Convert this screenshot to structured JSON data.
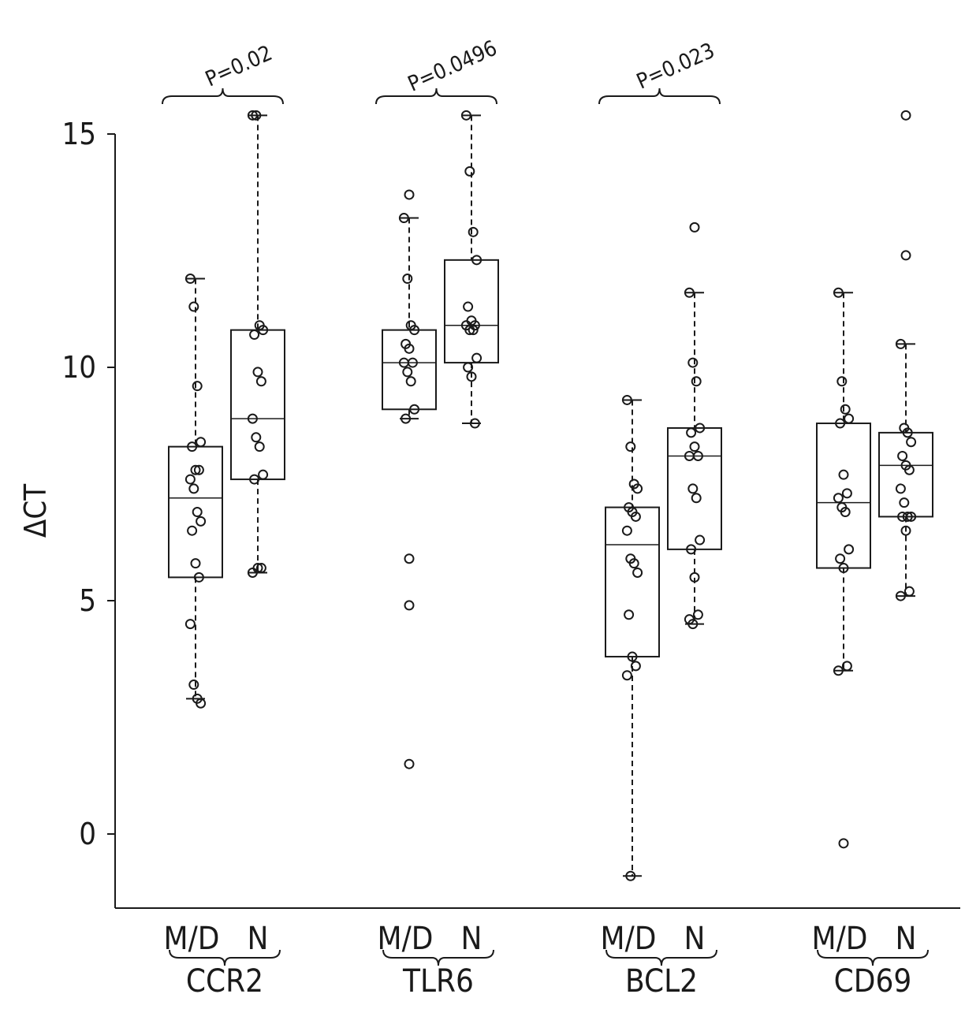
{
  "chart_data": {
    "type": "boxplot",
    "ylabel": "ΔCT",
    "ylim": [
      -1.6,
      15.6
    ],
    "yticks": [
      0,
      5,
      10,
      15
    ],
    "yticklabels": [
      "0",
      "5",
      "10",
      "15"
    ],
    "groups": [
      {
        "gene": "CCR2",
        "p_value": "P=0.02",
        "boxes": [
          {
            "label": "M/D",
            "whisker_low": 2.9,
            "q1": 5.5,
            "median": 7.2,
            "q3": 8.3,
            "whisker_high": 11.9,
            "outliers": [],
            "points": [
              11.9,
              11.3,
              9.6,
              8.4,
              8.3,
              7.8,
              7.8,
              7.6,
              7.4,
              6.9,
              6.7,
              6.5,
              5.8,
              5.5,
              4.5,
              3.2,
              2.9,
              2.8
            ]
          },
          {
            "label": "N",
            "whisker_low": 5.6,
            "q1": 7.6,
            "median": 8.9,
            "q3": 10.8,
            "whisker_high": 15.4,
            "outliers": [],
            "points": [
              15.4,
              15.4,
              10.9,
              10.8,
              10.7,
              9.9,
              9.7,
              8.9,
              8.5,
              8.3,
              7.7,
              7.6,
              5.7,
              5.7,
              5.6
            ]
          }
        ]
      },
      {
        "gene": "TLR6",
        "p_value": "P=0.0496",
        "boxes": [
          {
            "label": "M/D",
            "whisker_low": 8.9,
            "q1": 9.1,
            "median": 10.1,
            "q3": 10.8,
            "whisker_high": 13.2,
            "outliers": [
              13.7,
              5.9,
              4.9,
              1.5
            ],
            "points": [
              13.2,
              11.9,
              10.9,
              10.8,
              10.5,
              10.4,
              10.1,
              10.1,
              9.9,
              9.7,
              9.1,
              8.9
            ]
          },
          {
            "label": "N",
            "whisker_low": 8.8,
            "q1": 10.1,
            "median": 10.9,
            "q3": 12.3,
            "whisker_high": 15.4,
            "outliers": [],
            "points": [
              15.4,
              14.2,
              12.9,
              12.3,
              11.3,
              11.0,
              10.9,
              10.9,
              10.8,
              10.8,
              10.2,
              10.0,
              9.8,
              8.8
            ]
          }
        ]
      },
      {
        "gene": "BCL2",
        "p_value": "P=0.023",
        "boxes": [
          {
            "label": "M/D",
            "whisker_low": -0.9,
            "q1": 3.8,
            "median": 6.2,
            "q3": 7.0,
            "whisker_high": 9.3,
            "outliers": [],
            "points": [
              9.3,
              8.3,
              7.5,
              7.4,
              7.0,
              6.9,
              6.8,
              6.5,
              5.9,
              5.8,
              5.6,
              4.7,
              3.8,
              3.6,
              3.4,
              -0.9
            ]
          },
          {
            "label": "N",
            "whisker_low": 4.5,
            "q1": 6.1,
            "median": 8.1,
            "q3": 8.7,
            "whisker_high": 11.6,
            "outliers": [
              13.0
            ],
            "points": [
              11.6,
              10.1,
              9.7,
              8.7,
              8.6,
              8.3,
              8.1,
              8.1,
              7.4,
              7.2,
              6.3,
              6.1,
              5.5,
              4.7,
              4.6,
              4.5
            ]
          }
        ]
      },
      {
        "gene": "CD69",
        "p_value": "",
        "boxes": [
          {
            "label": "M/D",
            "whisker_low": 3.5,
            "q1": 5.7,
            "median": 7.1,
            "q3": 8.8,
            "whisker_high": 11.6,
            "outliers": [
              -0.2
            ],
            "points": [
              11.6,
              9.7,
              9.1,
              8.9,
              8.8,
              7.7,
              7.3,
              7.2,
              7.0,
              6.9,
              6.1,
              5.9,
              5.7,
              3.6,
              3.5
            ]
          },
          {
            "label": "N",
            "whisker_low": 5.1,
            "q1": 6.8,
            "median": 7.9,
            "q3": 8.6,
            "whisker_high": 10.5,
            "outliers": [
              15.4,
              12.4
            ],
            "points": [
              10.5,
              8.7,
              8.6,
              8.4,
              8.1,
              7.9,
              7.8,
              7.4,
              7.1,
              6.8,
              6.8,
              6.8,
              6.5,
              5.2,
              5.1
            ]
          }
        ]
      }
    ]
  }
}
